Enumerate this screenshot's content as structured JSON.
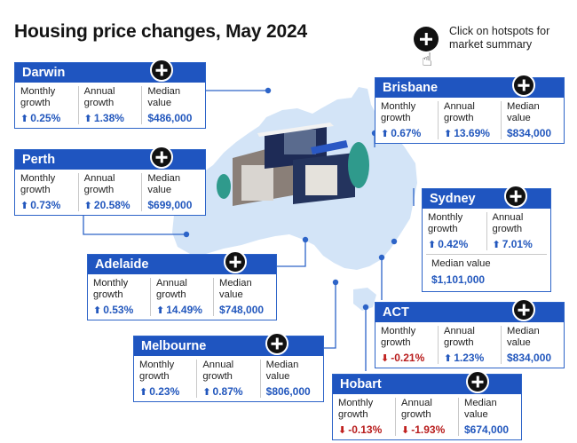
{
  "title": "Housing price changes, May 2024",
  "hint": {
    "line1": "Click on hotspots for",
    "line2": "market summary",
    "icon": "plus-icon",
    "cursor": "hand-pointer-icon"
  },
  "colors": {
    "header": "#1f55c0",
    "positive": "#2257bd",
    "negative": "#b81c1c",
    "map": "#d3e4f7"
  },
  "labels": {
    "monthly1": "Monthly",
    "monthly2": "growth",
    "annual1": "Annual",
    "annual2": "growth",
    "median1": "Median",
    "median2": "value",
    "median_value": "Median value"
  },
  "cities": {
    "darwin": {
      "name": "Darwin",
      "monthly": "0.25%",
      "annual": "1.38%",
      "median": "$486,000",
      "monthly_dir": "up",
      "annual_dir": "up"
    },
    "perth": {
      "name": "Perth",
      "monthly": "0.73%",
      "annual": "20.58%",
      "median": "$699,000",
      "monthly_dir": "up",
      "annual_dir": "up"
    },
    "adelaide": {
      "name": "Adelaide",
      "monthly": "0.53%",
      "annual": "14.49%",
      "median": "$748,000",
      "monthly_dir": "up",
      "annual_dir": "up"
    },
    "melbourne": {
      "name": "Melbourne",
      "monthly": "0.23%",
      "annual": "0.87%",
      "median": "$806,000",
      "monthly_dir": "up",
      "annual_dir": "up"
    },
    "brisbane": {
      "name": "Brisbane",
      "monthly": "0.67%",
      "annual": "13.69%",
      "median": "$834,000",
      "monthly_dir": "up",
      "annual_dir": "up"
    },
    "sydney": {
      "name": "Sydney",
      "monthly": "0.42%",
      "annual": "7.01%",
      "median": "$1,101,000",
      "monthly_dir": "up",
      "annual_dir": "up"
    },
    "act": {
      "name": "ACT",
      "monthly": "-0.21%",
      "annual": "1.23%",
      "median": "$834,000",
      "monthly_dir": "down",
      "annual_dir": "up"
    },
    "hobart": {
      "name": "Hobart",
      "monthly": "-0.13%",
      "annual": "-1.93%",
      "median": "$674,000",
      "monthly_dir": "down",
      "annual_dir": "down"
    }
  }
}
